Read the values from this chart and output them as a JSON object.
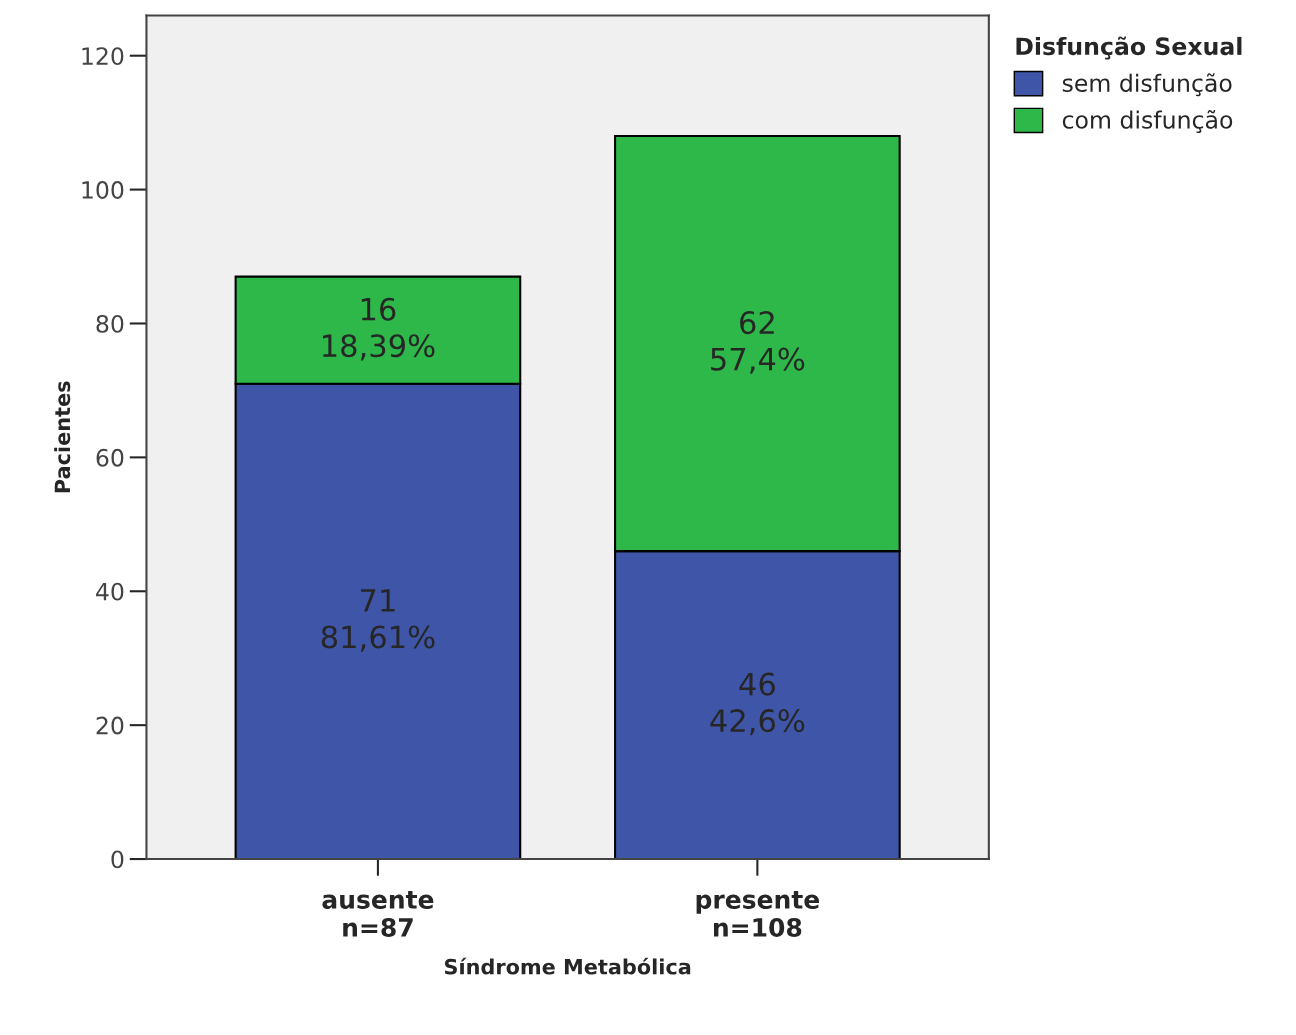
{
  "chart_data": {
    "type": "bar",
    "stacked": true,
    "xlabel": "Síndrome Metabólica",
    "ylabel": "Pacientes",
    "legend_title": "Disfunção Sexual",
    "categories": [
      "ausente\nn=87",
      "presente\nn=108"
    ],
    "series": [
      {
        "name": "sem disfunção",
        "color": "#3f56a8",
        "values": [
          71,
          46
        ],
        "value_labels": [
          "71\n81,61%",
          "46\n42,6%"
        ]
      },
      {
        "name": "com disfunção",
        "color": "#2eb84a",
        "values": [
          16,
          62
        ],
        "value_labels": [
          "16\n18,39%",
          "62\n57,4%"
        ]
      }
    ],
    "ylim": [
      0,
      126
    ],
    "yticks": [
      0,
      20,
      40,
      60,
      80,
      100,
      120
    ],
    "grid": false,
    "legend": "top right"
  }
}
